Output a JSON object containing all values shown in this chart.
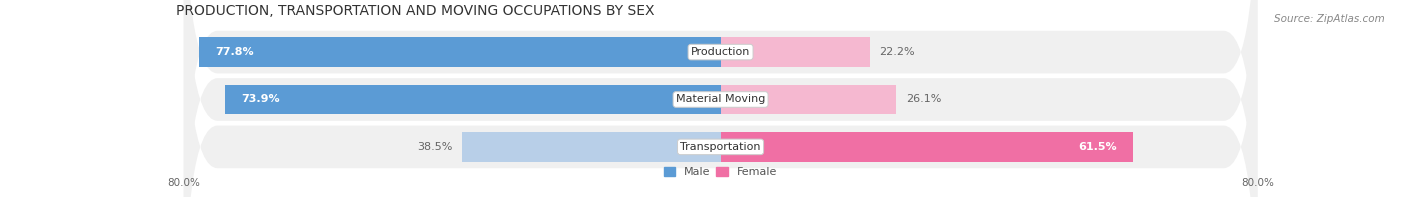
{
  "title": "PRODUCTION, TRANSPORTATION AND MOVING OCCUPATIONS BY SEX",
  "source": "Source: ZipAtlas.com",
  "categories": [
    "Production",
    "Material Moving",
    "Transportation"
  ],
  "male_values": [
    77.8,
    73.9,
    38.5
  ],
  "female_values": [
    22.2,
    26.1,
    61.5
  ],
  "male_color_strong": "#5b9bd5",
  "male_color_light": "#b8cfe8",
  "female_color_strong": "#f06fa4",
  "female_color_light": "#f5b8d0",
  "row_bg_color": "#f0f0f0",
  "axis_min": -80.0,
  "axis_max": 80.0,
  "title_fontsize": 10,
  "label_fontsize": 8,
  "tick_fontsize": 7.5,
  "source_fontsize": 7.5
}
